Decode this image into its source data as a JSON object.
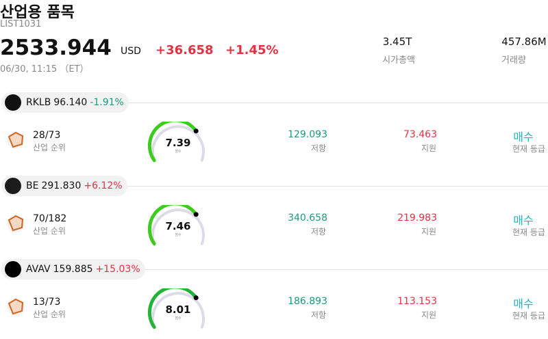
{
  "header": {
    "title": "산업용 품목",
    "code": "LIST1031",
    "price": "2533.944",
    "currency": "USD",
    "change": "+36.658",
    "change_pct": "+1.45%",
    "time": "06/30, 11:15 （ET）",
    "stats": [
      {
        "value": "3.45T",
        "label": "시가총액"
      },
      {
        "value": "457.86M",
        "label": "거래량"
      }
    ]
  },
  "stocks": [
    {
      "ticker": "RKLB",
      "price": "96.140",
      "change": "-1.91%",
      "rank": "28/73",
      "rank_label": "산업 순위",
      "score": "7.39",
      "score_label": "점수",
      "resistance": "129.093",
      "resistance_label": "저항",
      "support": "73.463",
      "support_label": "지원",
      "rating": "매수",
      "rating_label": "현재 등급"
    },
    {
      "ticker": "BE",
      "price": "291.830",
      "change": "+6.12%",
      "rank": "70/182",
      "rank_label": "산업 순위",
      "score": "7.46",
      "score_label": "점수",
      "resistance": "340.658",
      "resistance_label": "저항",
      "support": "219.983",
      "support_label": "지원",
      "rating": "매수",
      "rating_label": "현재 등급"
    },
    {
      "ticker": "AVAV",
      "price": "159.885",
      "change": "+15.03%",
      "rank": "13/73",
      "rank_label": "산업 순위",
      "score": "8.01",
      "score_label": "점수",
      "resistance": "186.893",
      "resistance_label": "저항",
      "support": "113.153",
      "support_label": "지원",
      "rating": "매수",
      "rating_label": "현재 등급"
    }
  ]
}
